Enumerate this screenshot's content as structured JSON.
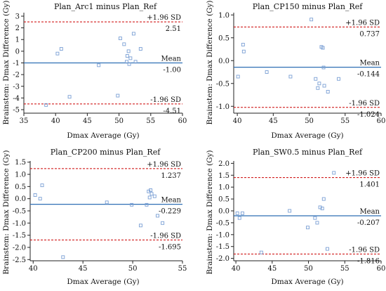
{
  "colors": {
    "mean_line": "#2f6fb5",
    "sd_line": "#cc0000",
    "points": "#7a9fd4",
    "axis": "#222222"
  },
  "shared_labels": {
    "ylabel": "Brainstem: Dmax Difference (Gy)",
    "xlabel": "Dmax Average  (Gy)"
  },
  "chart_data": [
    {
      "type": "scatter",
      "title": "Plan_Arc1 minus Plan_Ref",
      "xlim": [
        35,
        60
      ],
      "ylim": [
        -5.3,
        3.3
      ],
      "xticks": [
        "35",
        "40",
        "45",
        "50",
        "55",
        "60"
      ],
      "yticks": [
        "3",
        "2",
        "1",
        "0",
        "-1",
        "-2",
        "-3",
        "-4",
        "-5"
      ],
      "upper_label": "+1.96 SD",
      "upper": 2.51,
      "upper_text": "2.51",
      "mean_label": "Mean",
      "mean": -1.0,
      "mean_text": "-1.00",
      "lower_label": "-1.96 SD",
      "lower": -4.51,
      "lower_text": "-4.51",
      "points": [
        [
          38.5,
          -4.6
        ],
        [
          40.3,
          -0.2
        ],
        [
          40.9,
          0.2
        ],
        [
          42.2,
          -3.9
        ],
        [
          46.8,
          -1.2
        ],
        [
          49.8,
          -3.8
        ],
        [
          50.2,
          1.1
        ],
        [
          50.8,
          0.6
        ],
        [
          51.2,
          -0.9
        ],
        [
          51.3,
          -0.4
        ],
        [
          51.5,
          0.0
        ],
        [
          51.6,
          -1.1
        ],
        [
          51.8,
          -0.6
        ],
        [
          52.3,
          1.5
        ],
        [
          52.6,
          -0.9
        ],
        [
          53.4,
          0.2
        ]
      ]
    },
    {
      "type": "scatter",
      "title": "Plan_CP150 minus Plan_Ref",
      "xlim": [
        39.5,
        60
      ],
      "ylim": [
        -1.15,
        1.05
      ],
      "xticks": [
        "40",
        "45",
        "50",
        "55",
        "60"
      ],
      "yticks": [
        "1.0",
        "0.5",
        "0.0",
        "-0.5",
        "-1.0"
      ],
      "upper_label": "+1.96 SD",
      "upper": 0.737,
      "upper_text": "0.737",
      "mean_label": "Mean",
      "mean": -0.144,
      "mean_text": "-0.144",
      "lower_label": "-1.96 SD",
      "lower": -1.024,
      "lower_text": "-1.024",
      "points": [
        [
          40.1,
          -0.35
        ],
        [
          40.8,
          0.35
        ],
        [
          40.9,
          0.2
        ],
        [
          44.1,
          -0.25
        ],
        [
          47.4,
          -0.35
        ],
        [
          50.3,
          0.9
        ],
        [
          50.9,
          -0.4
        ],
        [
          51.2,
          -0.6
        ],
        [
          51.4,
          -0.5
        ],
        [
          51.7,
          0.3
        ],
        [
          51.9,
          0.28
        ],
        [
          52.0,
          -0.15
        ],
        [
          52.1,
          -0.55
        ],
        [
          52.6,
          -0.68
        ],
        [
          54.1,
          -0.4
        ]
      ]
    },
    {
      "type": "scatter",
      "title": "Plan_CP200 minus Plan_Ref",
      "xlim": [
        39.7,
        55
      ],
      "ylim": [
        -2.55,
        1.55
      ],
      "xticks": [
        "40",
        "45",
        "50",
        "55"
      ],
      "yticks": [
        "1.5",
        "1.0",
        "0.5",
        "0.0",
        "-0.5",
        "-1.0",
        "-1.5",
        "-2.0",
        "-2.5"
      ],
      "upper_label": "+1.96 SD",
      "upper": 1.237,
      "upper_text": "1.237",
      "mean_label": "Mean",
      "mean": -0.229,
      "mean_text": "-0.229",
      "lower_label": "-1.96 SD",
      "lower": -1.695,
      "lower_text": "-1.695",
      "points": [
        [
          40.2,
          0.15
        ],
        [
          40.7,
          0.0
        ],
        [
          40.9,
          0.55
        ],
        [
          43.0,
          -2.4
        ],
        [
          47.4,
          -0.15
        ],
        [
          49.9,
          -0.25
        ],
        [
          50.8,
          -1.1
        ],
        [
          51.4,
          -0.25
        ],
        [
          51.6,
          0.3
        ],
        [
          51.7,
          0.05
        ],
        [
          51.8,
          0.35
        ],
        [
          51.9,
          0.2
        ],
        [
          52.2,
          0.1
        ],
        [
          52.5,
          -0.7
        ],
        [
          53.0,
          -1.0
        ]
      ]
    },
    {
      "type": "scatter",
      "title": "Plan_SW0.5 minus Plan_Ref",
      "xlim": [
        39.7,
        60
      ],
      "ylim": [
        -2.1,
        2.1
      ],
      "xticks": [
        "40",
        "45",
        "50",
        "55",
        "60"
      ],
      "yticks": [
        "2.0",
        "1.5",
        "1.0",
        "0.5",
        "0.0",
        "-0.5",
        "-1.0",
        "-1.5",
        "-2.0"
      ],
      "upper_label": "+1.96 SD",
      "upper": 1.401,
      "upper_text": "1.401",
      "mean_label": "Mean",
      "mean": -0.207,
      "mean_text": "-0.207",
      "lower_label": "-1.96 SD",
      "lower": -1.816,
      "lower_text": "-1.816",
      "points": [
        [
          40.2,
          -0.1
        ],
        [
          40.5,
          -0.3
        ],
        [
          40.9,
          -0.1
        ],
        [
          43.5,
          -1.75
        ],
        [
          47.4,
          0.0
        ],
        [
          49.9,
          -0.7
        ],
        [
          50.9,
          -0.3
        ],
        [
          51.2,
          -0.5
        ],
        [
          51.6,
          0.15
        ],
        [
          51.9,
          0.1
        ],
        [
          52.1,
          0.5
        ],
        [
          52.6,
          -1.6
        ],
        [
          53.5,
          1.6
        ]
      ]
    }
  ]
}
